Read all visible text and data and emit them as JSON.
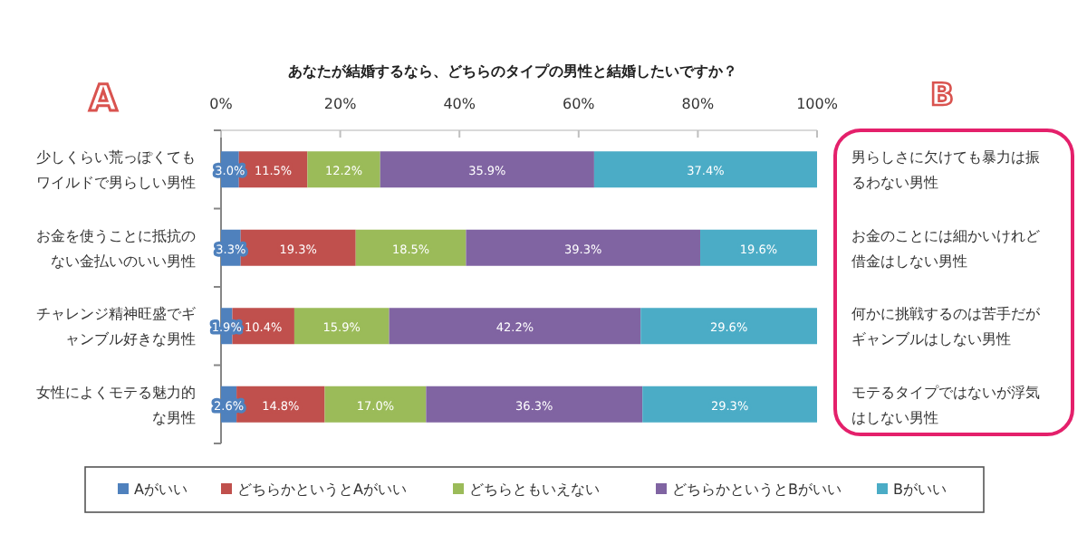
{
  "chart_data": {
    "type": "bar",
    "orientation": "horizontal",
    "stacked": true,
    "title": "あなたが結婚するなら、どちらのタイプの男性と結婚したいですか？",
    "categories": [
      "少しくらい荒っぽくてもワイルドで男らしい男性",
      "お金を使うことに抵抗のない金払いのいい男性",
      "チャレンジ精神旺盛でギャンブル好きな男性",
      "女性によくモテる魅力的な男性"
    ],
    "xlim": [
      0,
      100
    ],
    "xticks": [
      {
        "value": 0,
        "label": "0%"
      },
      {
        "value": 20,
        "label": "20%"
      },
      {
        "value": 40,
        "label": "40%"
      },
      {
        "value": 60,
        "label": "60%"
      },
      {
        "value": 80,
        "label": "80%"
      },
      {
        "value": 100,
        "label": "100%"
      }
    ],
    "series": [
      {
        "name": "Aがいい",
        "color": "#4f81bd",
        "values": [
          3.0,
          3.3,
          1.9,
          2.6
        ],
        "value_labels": [
          "3.0%",
          "3.3%",
          "1.9%",
          "2.6%"
        ]
      },
      {
        "name": "どちらかというとAがいい",
        "color": "#c0504d",
        "values": [
          11.5,
          19.3,
          10.4,
          14.8
        ],
        "value_labels": [
          "11.5%",
          "19.3%",
          "10.4%",
          "14.8%"
        ]
      },
      {
        "name": "どちらともいえない",
        "color": "#9bbb59",
        "values": [
          12.2,
          18.5,
          15.9,
          17.0
        ],
        "value_labels": [
          "12.2%",
          "18.5%",
          "15.9%",
          "17.0%"
        ]
      },
      {
        "name": "どちらかというとBがいい",
        "color": "#8064a2",
        "values": [
          35.9,
          39.3,
          42.2,
          36.3
        ],
        "value_labels": [
          "35.9%",
          "39.3%",
          "42.2%",
          "36.3%"
        ]
      },
      {
        "name": "Bがいい",
        "color": "#4bacc6",
        "values": [
          37.4,
          19.6,
          29.6,
          29.3
        ],
        "value_labels": [
          "37.4%",
          "19.6%",
          "29.6%",
          "29.3%"
        ]
      }
    ],
    "legend": "bottom",
    "annotations": [
      "A",
      "B",
      "男らしさに欠けても暴力は振るわない男性",
      "お金のことには細かいけれど借金はしない男性",
      "何かに挑戦するのは苦手だがギャンブルはしない男性",
      "モテるタイプではないが浮気はしない男性"
    ]
  }
}
